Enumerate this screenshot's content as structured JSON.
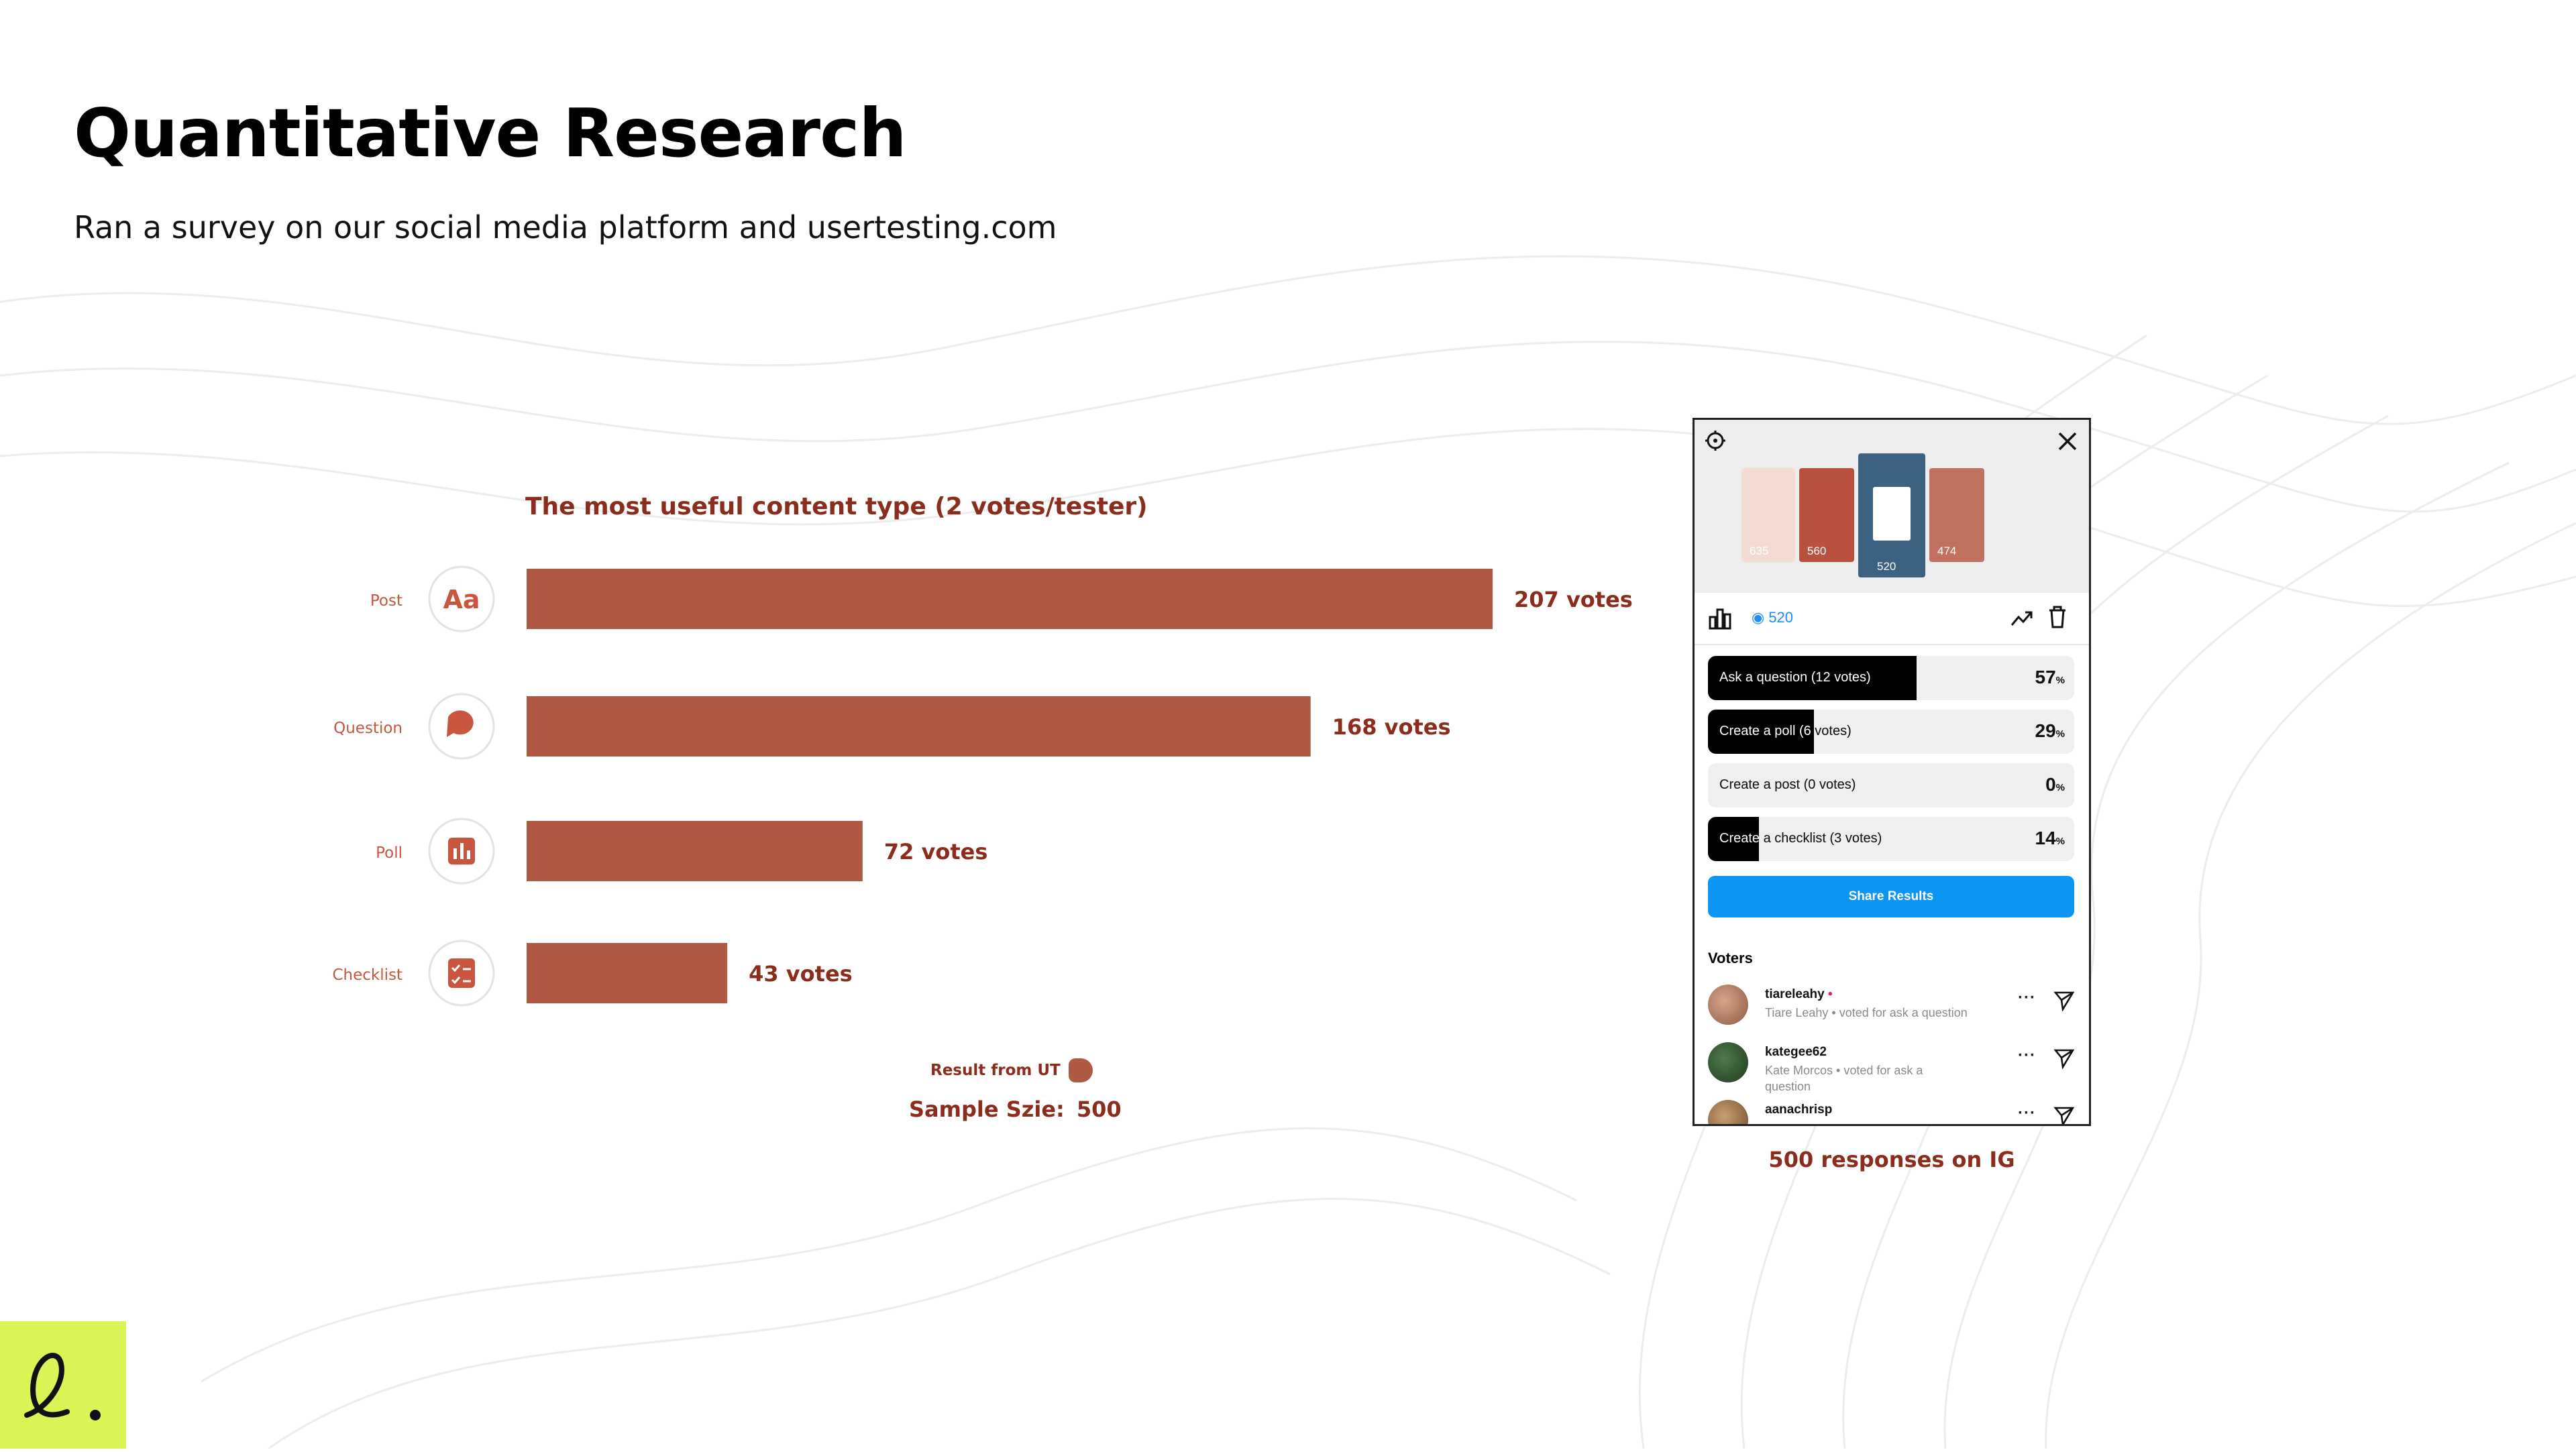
{
  "page": {
    "title": "Quantitative Research",
    "subtitle": "Ran a survey on our social media platform and usertesting.com"
  },
  "chart_data": {
    "type": "bar",
    "orientation": "horizontal",
    "title": "The most useful content type (2 votes/tester)",
    "categories": [
      "Post",
      "Question",
      "Poll",
      "Checklist"
    ],
    "icons": [
      "text-aa-icon",
      "question-chat-icon",
      "bar-chart-icon",
      "checklist-icon"
    ],
    "values": [
      207,
      168,
      72,
      43
    ],
    "data_labels": [
      "207 votes",
      "168 votes",
      "72 votes",
      "43 votes"
    ],
    "xlim": [
      0,
      207
    ],
    "grid": false,
    "bar_color": "#b05a46",
    "legend": {
      "label": "Result from UT",
      "position": "bottom"
    },
    "sample_label": "Sample Szie:",
    "sample_value": "500"
  },
  "ig_panel": {
    "settings_icon": "gear-icon",
    "close_icon": "close-icon",
    "story_views": [
      "635",
      "560",
      "520",
      "474"
    ],
    "active_story_views": "520",
    "stats_icon": "bar-chart-icon",
    "trend_icon": "trending-up-icon",
    "delete_icon": "trash-icon",
    "options": [
      {
        "label": "Ask a question (12 votes)",
        "percent": "57",
        "percent_value": 57
      },
      {
        "label": "Create a poll (6 votes)",
        "percent": "29",
        "percent_value": 29
      },
      {
        "label": "Create a post (0 votes)",
        "percent": "0",
        "percent_value": 0
      },
      {
        "label": "Create a checklist (3 votes)",
        "percent": "14",
        "percent_value": 14
      }
    ],
    "percent_sign": "%",
    "share_label": "Share Results",
    "voters_heading": "Voters",
    "voters": [
      {
        "username": "tiareleahy",
        "dot": "•",
        "description": "Tiare Leahy • voted for ask a question"
      },
      {
        "username": "kategee62",
        "description": "Kate Morcos • voted for ask a question"
      },
      {
        "username": "aanachrisp",
        "description": ""
      }
    ],
    "more_label": "···",
    "caption": "500 responses on IG"
  },
  "colors": {
    "accent": "#8b2c1c",
    "bar": "#b05a46",
    "ig_blue": "#0d95f6",
    "logo_bg": "#dcf356"
  }
}
